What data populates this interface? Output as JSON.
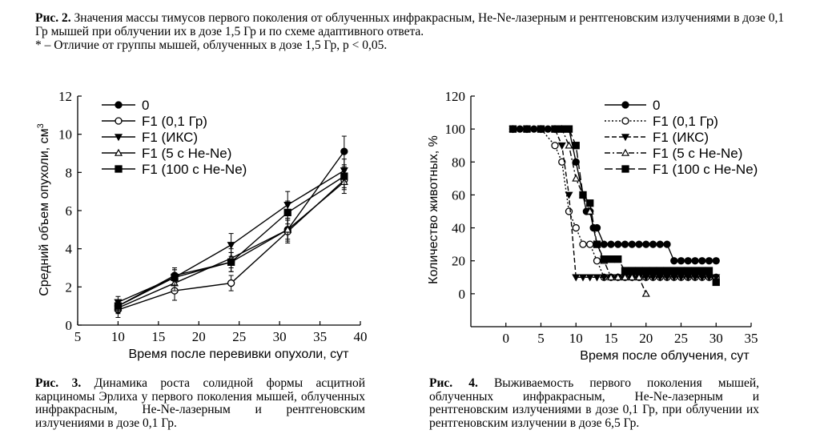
{
  "top_caption": {
    "label": "Рис. 2.",
    "text": "Значения массы тимусов первого поколения от облученных инфракрасным, He-Ne-лазерным и рентгеновским излучениями в дозе 0,1 Гр мышей при облучении их в дозе 1,5 Гр и по схеме адаптивного ответа.",
    "note": "* – Отличие от группы мышей, облученных в дозе 1,5 Гр, p < 0,05."
  },
  "fig3_caption": {
    "label": "Рис. 3.",
    "text": "Динамика роста солидной формы асцитной карциномы Эрлиха у первого поколения мышей, облученных инфракрасным, He-Ne-лазерным и рентгеновским излучениями в дозе 0,1 Гр."
  },
  "fig4_caption": {
    "label": "Рис. 4.",
    "text": "Выживаемость первого поколения мышей, облученных инфракрасным, He-Ne-лазерным и рентгеновским излучениями в дозе 0,1 Гр, при облучении их рентгеновским излучении в дозе 6,5 Гр."
  },
  "chart_data": [
    {
      "type": "line",
      "xlabel": "Время после перевивки опухоли, сут",
      "ylabel": "Средний объем опухоли, см",
      "ylabel_sup": "3",
      "xlim": [
        5,
        40
      ],
      "ylim": [
        0,
        12
      ],
      "xticks": [
        5,
        10,
        15,
        20,
        25,
        30,
        35,
        40
      ],
      "yticks": [
        0,
        2,
        4,
        6,
        8,
        10,
        12
      ],
      "legend_position": "top-left",
      "x": [
        10,
        17,
        24,
        31,
        38
      ],
      "series": [
        {
          "name": "0",
          "marker": "filled-circle",
          "values": [
            1.0,
            2.6,
            3.3,
            5.0,
            9.1
          ],
          "err": [
            0.3,
            0.4,
            0.5,
            0.5,
            0.8
          ]
        },
        {
          "name": "F1 (0,1 Гр)",
          "marker": "open-circle",
          "values": [
            0.8,
            1.8,
            2.2,
            4.9,
            7.6
          ],
          "err": [
            0.4,
            0.5,
            0.4,
            0.6,
            0.5
          ]
        },
        {
          "name": "F1 (ИКС)",
          "marker": "filled-triangle-down",
          "values": [
            1.2,
            2.5,
            4.2,
            6.3,
            8.1
          ],
          "err": [
            0.3,
            0.4,
            0.6,
            0.7,
            0.6
          ]
        },
        {
          "name": "F1 (5 с He-Ne)",
          "marker": "open-triangle-up",
          "values": [
            0.9,
            2.2,
            3.5,
            5.0,
            7.5
          ],
          "err": [
            0.3,
            0.4,
            0.5,
            0.6,
            0.6
          ]
        },
        {
          "name": "F1 (100 с He-Ne)",
          "marker": "filled-square",
          "values": [
            1.0,
            2.5,
            3.3,
            5.9,
            7.8
          ],
          "err": [
            0.3,
            0.4,
            0.5,
            0.6,
            0.6
          ]
        }
      ]
    },
    {
      "type": "line",
      "xlabel": "Время после облучения, сут",
      "ylabel": "Количество животных, %",
      "xlim": [
        -5,
        35
      ],
      "ylim": [
        -20,
        120
      ],
      "xticks": [
        0,
        5,
        10,
        15,
        20,
        25,
        30,
        35
      ],
      "yticks": [
        0,
        20,
        40,
        60,
        80,
        100,
        120
      ],
      "legend_position": "top-right",
      "series": [
        {
          "name": "0",
          "marker": "filled-circle",
          "dash": "solid",
          "points": [
            [
              1,
              100
            ],
            [
              2,
              100
            ],
            [
              3,
              100
            ],
            [
              4,
              100
            ],
            [
              5,
              100
            ],
            [
              6,
              100
            ],
            [
              7,
              100
            ],
            [
              8,
              100
            ],
            [
              9,
              100
            ],
            [
              10,
              80
            ],
            [
              11,
              60
            ],
            [
              11.5,
              50
            ],
            [
              12,
              50
            ],
            [
              12.5,
              40
            ],
            [
              13,
              40
            ],
            [
              14,
              30
            ],
            [
              15,
              30
            ],
            [
              16,
              30
            ],
            [
              17,
              30
            ],
            [
              18,
              30
            ],
            [
              19,
              30
            ],
            [
              20,
              30
            ],
            [
              21,
              30
            ],
            [
              22,
              30
            ],
            [
              23,
              30
            ],
            [
              24,
              20
            ],
            [
              25,
              20
            ],
            [
              26,
              20
            ],
            [
              27,
              20
            ],
            [
              28,
              20
            ],
            [
              29,
              20
            ],
            [
              30,
              20
            ]
          ]
        },
        {
          "name": "F1 (0,1 Гр)",
          "marker": "open-circle",
          "dash": "dotted",
          "points": [
            [
              1,
              100
            ],
            [
              3,
              100
            ],
            [
              5,
              100
            ],
            [
              7,
              90
            ],
            [
              8,
              80
            ],
            [
              9,
              50
            ],
            [
              10,
              40
            ],
            [
              11,
              30
            ],
            [
              12,
              30
            ],
            [
              13,
              20
            ],
            [
              14,
              10
            ],
            [
              15,
              10
            ],
            [
              16,
              10
            ],
            [
              17,
              10
            ],
            [
              18,
              10
            ],
            [
              19,
              10
            ],
            [
              20,
              10
            ],
            [
              21,
              10
            ],
            [
              22,
              10
            ],
            [
              23,
              10
            ],
            [
              24,
              10
            ],
            [
              25,
              10
            ],
            [
              26,
              10
            ],
            [
              27,
              10
            ],
            [
              28,
              10
            ],
            [
              29,
              10
            ],
            [
              30,
              10
            ]
          ]
        },
        {
          "name": "F1 (ИКС)",
          "marker": "filled-triangle-down",
          "dash": "dashed",
          "points": [
            [
              1,
              100
            ],
            [
              3,
              100
            ],
            [
              5,
              100
            ],
            [
              7,
              100
            ],
            [
              8,
              90
            ],
            [
              9,
              60
            ],
            [
              10,
              10
            ],
            [
              11,
              10
            ],
            [
              12,
              10
            ],
            [
              13,
              10
            ],
            [
              14,
              10
            ],
            [
              15,
              10
            ],
            [
              16,
              10
            ],
            [
              17,
              10
            ],
            [
              18,
              10
            ],
            [
              19,
              10
            ],
            [
              20,
              10
            ],
            [
              21,
              10
            ],
            [
              22,
              10
            ],
            [
              23,
              10
            ],
            [
              24,
              10
            ],
            [
              25,
              10
            ],
            [
              26,
              10
            ],
            [
              27,
              10
            ],
            [
              28,
              10
            ],
            [
              29,
              10
            ],
            [
              30,
              10
            ]
          ]
        },
        {
          "name": "F1 (5 с He-Ne)",
          "marker": "open-triangle-up",
          "dash": "dashdot",
          "points": [
            [
              1,
              100
            ],
            [
              3,
              100
            ],
            [
              5,
              100
            ],
            [
              7,
              100
            ],
            [
              8,
              100
            ],
            [
              9,
              90
            ],
            [
              10,
              70
            ],
            [
              11,
              60
            ],
            [
              12,
              50
            ],
            [
              13,
              30
            ],
            [
              14,
              20
            ],
            [
              15,
              10
            ],
            [
              16,
              10
            ],
            [
              17,
              10
            ],
            [
              18,
              10
            ],
            [
              19,
              10
            ],
            [
              20,
              0
            ]
          ]
        },
        {
          "name": "F1 (100 с He-Ne)",
          "marker": "filled-square",
          "dash": "longdash",
          "points": [
            [
              1,
              100
            ],
            [
              3,
              100
            ],
            [
              5,
              100
            ],
            [
              7,
              100
            ],
            [
              8,
              100
            ],
            [
              9,
              100
            ],
            [
              10,
              90
            ],
            [
              11,
              60
            ],
            [
              12,
              55
            ],
            [
              13,
              30
            ],
            [
              14,
              21
            ],
            [
              15,
              21
            ],
            [
              16,
              21
            ],
            [
              17,
              14
            ],
            [
              18,
              14
            ],
            [
              19,
              14
            ],
            [
              20,
              14
            ],
            [
              21,
              14
            ],
            [
              22,
              14
            ],
            [
              23,
              14
            ],
            [
              24,
              14
            ],
            [
              25,
              14
            ],
            [
              26,
              14
            ],
            [
              27,
              14
            ],
            [
              28,
              14
            ],
            [
              29,
              14
            ],
            [
              30,
              7
            ]
          ]
        }
      ]
    }
  ]
}
